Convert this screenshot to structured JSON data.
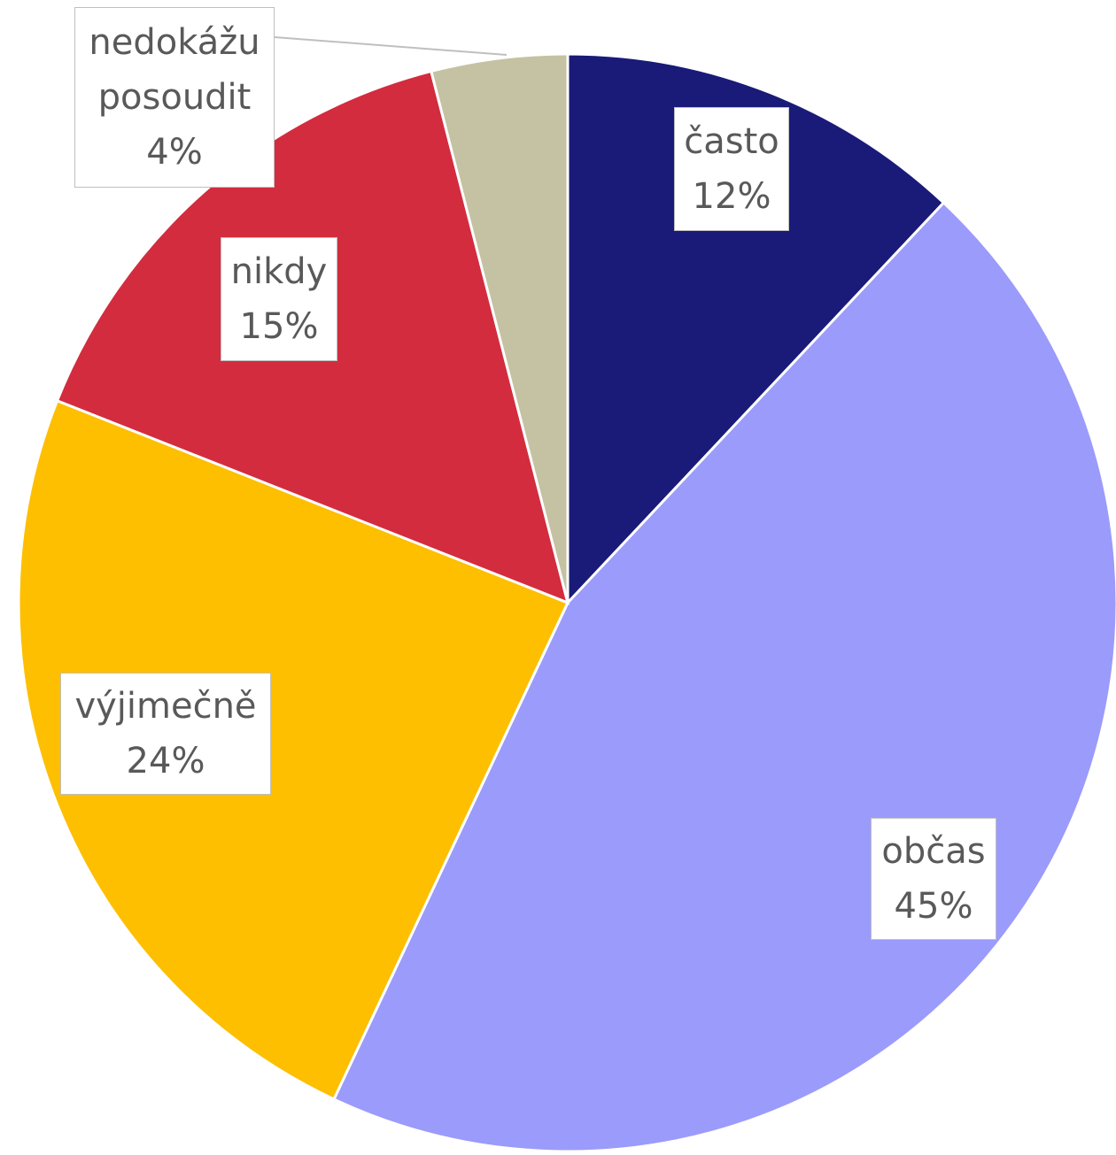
{
  "chart_data": {
    "type": "pie",
    "categories": [
      "často",
      "občas",
      "výjimečně",
      "nikdy",
      "nedokážu posoudit"
    ],
    "values": [
      12,
      45,
      24,
      15,
      4
    ],
    "value_labels": [
      "12%",
      "45%",
      "24%",
      "15%",
      "4%"
    ],
    "colors": [
      "#1a1a78",
      "#9b9bfb",
      "#fdbf00",
      "#d32c3e",
      "#c4c2a2"
    ]
  }
}
